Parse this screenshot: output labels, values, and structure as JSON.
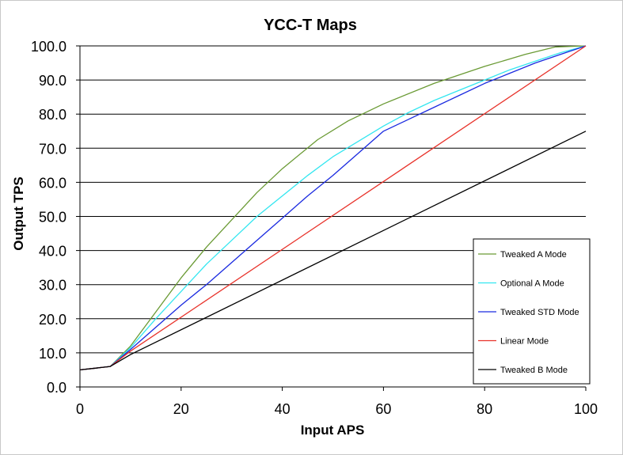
{
  "chart_data": {
    "type": "line",
    "title": "YCC-T Maps",
    "xlabel": "Input APS",
    "ylabel": "Output TPS",
    "xlim": [
      0,
      100
    ],
    "ylim": [
      0,
      100
    ],
    "xticks": [
      0,
      20,
      40,
      60,
      80,
      100
    ],
    "yticks": [
      0,
      10,
      20,
      30,
      40,
      50,
      60,
      70,
      80,
      90,
      100
    ],
    "xtick_labels": [
      "0",
      "20",
      "40",
      "60",
      "80",
      "100"
    ],
    "ytick_labels": [
      "0.0",
      "10.0",
      "20.0",
      "30.0",
      "40.0",
      "50.0",
      "60.0",
      "70.0",
      "80.0",
      "90.0",
      "100.0"
    ],
    "grid": "horizontal",
    "legend_position": "bottom-right",
    "series": [
      {
        "name": "Tweaked A Mode",
        "color": "#6a9a34",
        "x": [
          0,
          3,
          6,
          10,
          15,
          20,
          25,
          30,
          35,
          40,
          47,
          53,
          60,
          70,
          80,
          88,
          94,
          100
        ],
        "y": [
          5,
          5.5,
          6,
          12,
          22,
          32,
          41,
          49,
          57,
          64,
          72.5,
          78,
          83,
          89,
          94,
          97.5,
          99.7,
          100
        ]
      },
      {
        "name": "Optional A Mode",
        "color": "#33e6f0",
        "x": [
          0,
          3,
          6,
          10,
          15,
          20,
          25,
          30,
          35,
          40,
          45,
          50,
          55,
          60,
          65,
          70,
          75,
          80,
          85,
          90,
          95,
          100
        ],
        "y": [
          5,
          5.5,
          6,
          11.5,
          20,
          28,
          36,
          43,
          50,
          56,
          62,
          67.5,
          72,
          76.5,
          80.5,
          84,
          87,
          90,
          93,
          95.5,
          98,
          100
        ]
      },
      {
        "name": "Tweaked STD Mode",
        "color": "#1a2ae0",
        "x": [
          0,
          3,
          6,
          10,
          15,
          20,
          25,
          30,
          35,
          40,
          45,
          50,
          55,
          60,
          65,
          70,
          75,
          80,
          85,
          90,
          95,
          100
        ],
        "y": [
          5,
          5.5,
          6,
          11,
          17.5,
          24,
          30,
          36.5,
          43,
          49.5,
          56,
          62,
          68.5,
          75,
          78.5,
          82,
          85.5,
          89,
          92,
          95,
          97.5,
          100
        ]
      },
      {
        "name": "Linear Mode",
        "color": "#e8322a",
        "x": [
          0,
          3,
          6,
          10,
          100
        ],
        "y": [
          5,
          5.5,
          6,
          10.5,
          100
        ]
      },
      {
        "name": "Tweaked B Mode",
        "color": "#000000",
        "x": [
          0,
          3,
          6,
          10,
          100
        ],
        "y": [
          5,
          5.5,
          6,
          9.5,
          75
        ]
      }
    ]
  }
}
